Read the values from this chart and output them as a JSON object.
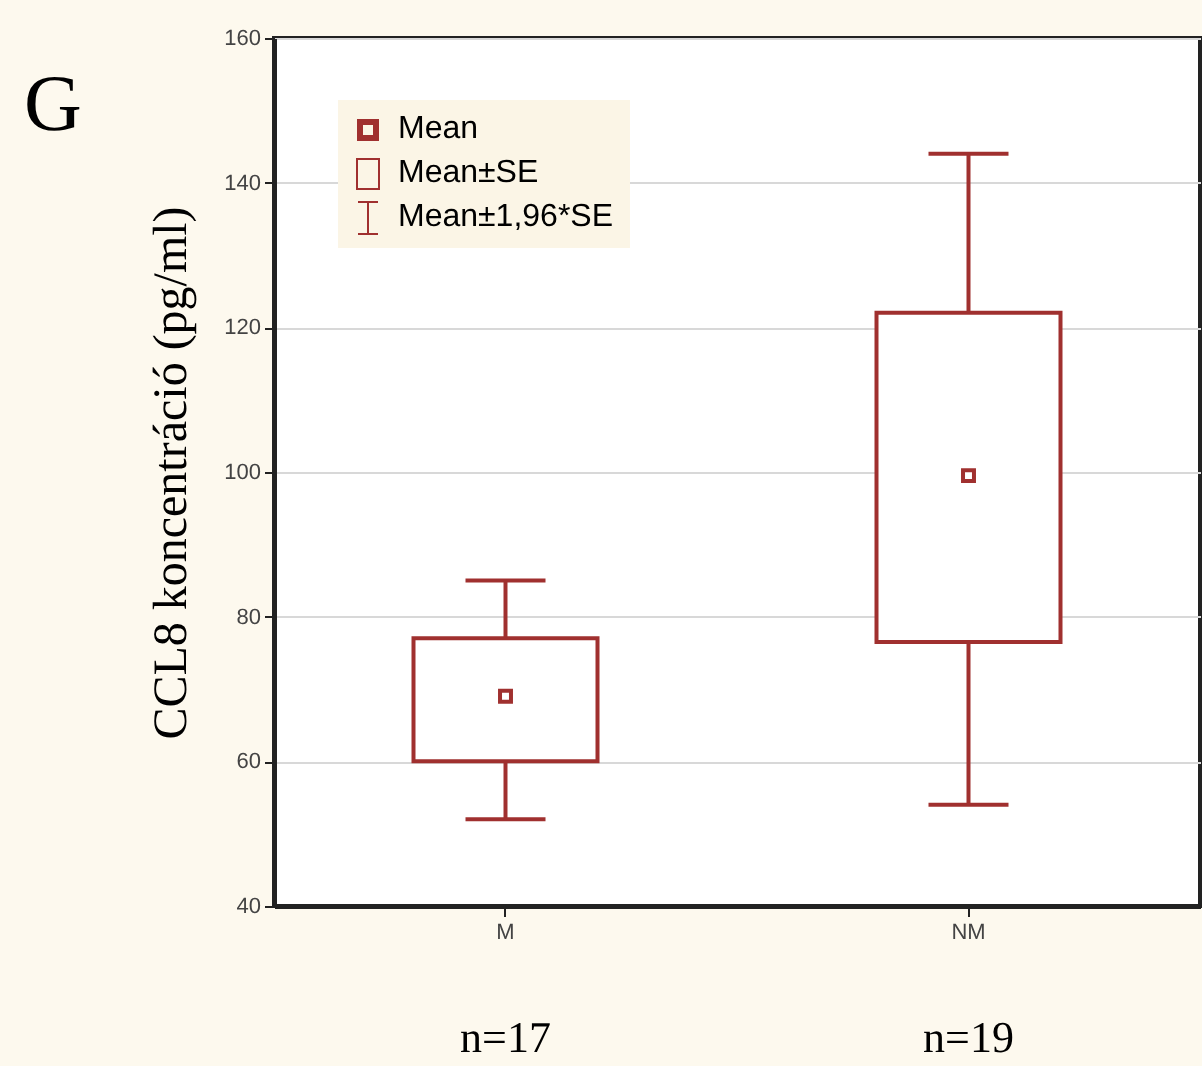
{
  "chart_data": {
    "type": "box",
    "title": "G",
    "ylabel": "CCL8 koncentráció (pg/ml)",
    "categories": [
      "M",
      "NM"
    ],
    "boxes": [
      {
        "low": 52,
        "q1": 60,
        "median": 69,
        "q3": 77,
        "high": 85
      },
      {
        "low": 54,
        "q1": 76.5,
        "median": 99.5,
        "q3": 122,
        "high": 144
      }
    ],
    "color": "#a0302f",
    "marker": "square",
    "ylim": [
      40,
      160
    ],
    "yticks": [
      40,
      60,
      80,
      100,
      120,
      140,
      160
    ],
    "grid": "y",
    "annotations": [
      "Mean",
      "Mean±SE",
      "Mean±1,96*SE",
      "n=17",
      "n=19"
    ]
  }
}
